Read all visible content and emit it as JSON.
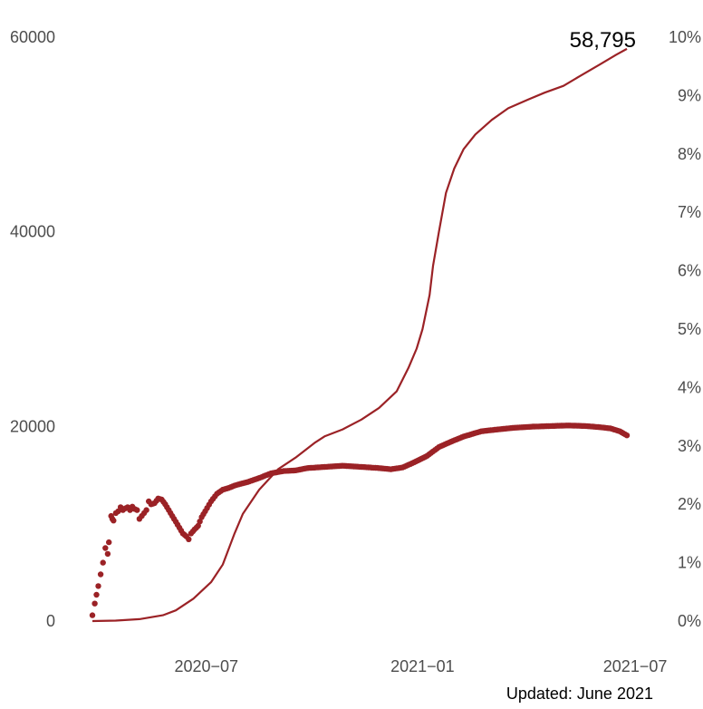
{
  "chart_data": {
    "type": "line",
    "x_range": [
      "2020-03-26",
      "2021-06-24"
    ],
    "y_left": {
      "ylim": [
        0,
        60000
      ],
      "ticks": [
        "0",
        "20000",
        "40000",
        "60000"
      ]
    },
    "y_right": {
      "ylim": [
        0,
        0.1
      ],
      "ticks": [
        "0%",
        "1%",
        "2%",
        "3%",
        "4%",
        "5%",
        "6%",
        "7%",
        "8%",
        "9%",
        "10%"
      ]
    },
    "x_ticks": [
      {
        "date": "2020-07-01",
        "label": "2020−07"
      },
      {
        "date": "2021-01-01",
        "label": "2021−01"
      },
      {
        "date": "2021-07-01",
        "label": "2021−07"
      }
    ],
    "grid": false,
    "legend": "none",
    "color": "#9b2226",
    "end_label": "58,795",
    "series": [
      {
        "axis": "left",
        "style": "line",
        "points": [
          [
            "2020-03-26",
            0
          ],
          [
            "2020-04-15",
            50
          ],
          [
            "2020-05-05",
            200
          ],
          [
            "2020-05-25",
            600
          ],
          [
            "2020-06-05",
            1100
          ],
          [
            "2020-06-20",
            2300
          ],
          [
            "2020-07-05",
            4000
          ],
          [
            "2020-07-15",
            5800
          ],
          [
            "2020-07-25",
            9000
          ],
          [
            "2020-08-01",
            11000
          ],
          [
            "2020-08-15",
            13500
          ],
          [
            "2020-08-31",
            15600
          ],
          [
            "2020-09-15",
            16800
          ],
          [
            "2020-10-01",
            18300
          ],
          [
            "2020-10-10",
            19000
          ],
          [
            "2020-10-25",
            19700
          ],
          [
            "2020-11-10",
            20700
          ],
          [
            "2020-11-25",
            21900
          ],
          [
            "2020-12-10",
            23600
          ],
          [
            "2020-12-20",
            26000
          ],
          [
            "2020-12-27",
            28000
          ],
          [
            "2021-01-01",
            30000
          ],
          [
            "2021-01-07",
            33500
          ],
          [
            "2021-01-10",
            36500
          ],
          [
            "2021-01-15",
            40000
          ],
          [
            "2021-01-21",
            44000
          ],
          [
            "2021-01-28",
            46500
          ],
          [
            "2021-02-05",
            48500
          ],
          [
            "2021-02-15",
            50000
          ],
          [
            "2021-03-01",
            51500
          ],
          [
            "2021-03-15",
            52700
          ],
          [
            "2021-04-01",
            53600
          ],
          [
            "2021-04-15",
            54300
          ],
          [
            "2021-05-01",
            55000
          ],
          [
            "2021-05-15",
            56000
          ],
          [
            "2021-06-01",
            57200
          ],
          [
            "2021-06-15",
            58200
          ],
          [
            "2021-06-24",
            58795
          ]
        ]
      },
      {
        "axis": "right",
        "style": "points",
        "points": [
          [
            "2020-03-26",
            0.001
          ],
          [
            "2020-03-28",
            0.003
          ],
          [
            "2020-03-31",
            0.006
          ],
          [
            "2020-04-02",
            0.008
          ],
          [
            "2020-04-04",
            0.01
          ],
          [
            "2020-04-06",
            0.0125
          ],
          [
            "2020-04-08",
            0.0115
          ],
          [
            "2020-04-09",
            0.0135
          ],
          [
            "2020-04-11",
            0.018
          ],
          [
            "2020-04-12",
            0.0175
          ],
          [
            "2020-04-13",
            0.0172
          ],
          [
            "2020-04-15",
            0.0185
          ],
          [
            "2020-04-17",
            0.0188
          ],
          [
            "2020-04-19",
            0.0195
          ],
          [
            "2020-04-21",
            0.019
          ],
          [
            "2020-04-23",
            0.0193
          ],
          [
            "2020-04-25",
            0.0195
          ],
          [
            "2020-04-27",
            0.019
          ],
          [
            "2020-04-29",
            0.0196
          ],
          [
            "2020-05-01",
            0.0192
          ],
          [
            "2020-05-03",
            0.019
          ],
          [
            "2020-05-05",
            0.0175
          ],
          [
            "2020-05-07",
            0.018
          ],
          [
            "2020-05-09",
            0.0185
          ],
          [
            "2020-05-11",
            0.019
          ],
          [
            "2020-05-13",
            0.0205
          ],
          [
            "2020-05-15",
            0.02
          ],
          [
            "2020-05-18",
            0.0202
          ],
          [
            "2020-05-21",
            0.021
          ],
          [
            "2020-05-24",
            0.0208
          ],
          [
            "2020-05-27",
            0.02
          ],
          [
            "2020-05-30",
            0.019
          ],
          [
            "2020-06-02",
            0.018
          ],
          [
            "2020-06-05",
            0.017
          ],
          [
            "2020-06-08",
            0.016
          ],
          [
            "2020-06-11",
            0.015
          ],
          [
            "2020-06-14",
            0.0145
          ],
          [
            "2020-06-16",
            0.014
          ],
          [
            "2020-06-18",
            0.015
          ],
          [
            "2020-06-21",
            0.0157
          ],
          [
            "2020-06-24",
            0.0163
          ],
          [
            "2020-06-27",
            0.0178
          ],
          [
            "2020-06-30",
            0.0188
          ],
          [
            "2020-07-05",
            0.0205
          ],
          [
            "2020-07-10",
            0.0218
          ],
          [
            "2020-07-15",
            0.0225
          ],
          [
            "2020-07-20",
            0.0228
          ],
          [
            "2020-07-25",
            0.0232
          ],
          [
            "2020-07-30",
            0.0235
          ],
          [
            "2020-08-05",
            0.0238
          ],
          [
            "2020-08-15",
            0.0245
          ],
          [
            "2020-08-25",
            0.0253
          ],
          [
            "2020-09-05",
            0.0257
          ],
          [
            "2020-09-15",
            0.0258
          ],
          [
            "2020-09-25",
            0.0262
          ],
          [
            "2020-10-10",
            0.0264
          ],
          [
            "2020-10-25",
            0.0266
          ],
          [
            "2020-11-10",
            0.0264
          ],
          [
            "2020-11-25",
            0.0262
          ],
          [
            "2020-12-05",
            0.026
          ],
          [
            "2020-12-15",
            0.0263
          ],
          [
            "2020-12-25",
            0.0272
          ],
          [
            "2021-01-05",
            0.0283
          ],
          [
            "2021-01-15",
            0.0298
          ],
          [
            "2021-01-25",
            0.0307
          ],
          [
            "2021-02-05",
            0.0316
          ],
          [
            "2021-02-20",
            0.0325
          ],
          [
            "2021-03-05",
            0.0328
          ],
          [
            "2021-03-20",
            0.0331
          ],
          [
            "2021-04-05",
            0.0333
          ],
          [
            "2021-04-20",
            0.0334
          ],
          [
            "2021-05-05",
            0.0335
          ],
          [
            "2021-05-20",
            0.0334
          ],
          [
            "2021-06-01",
            0.0332
          ],
          [
            "2021-06-10",
            0.033
          ],
          [
            "2021-06-18",
            0.0325
          ],
          [
            "2021-06-24",
            0.0318
          ]
        ]
      }
    ]
  },
  "updated": "Updated: June 2021"
}
